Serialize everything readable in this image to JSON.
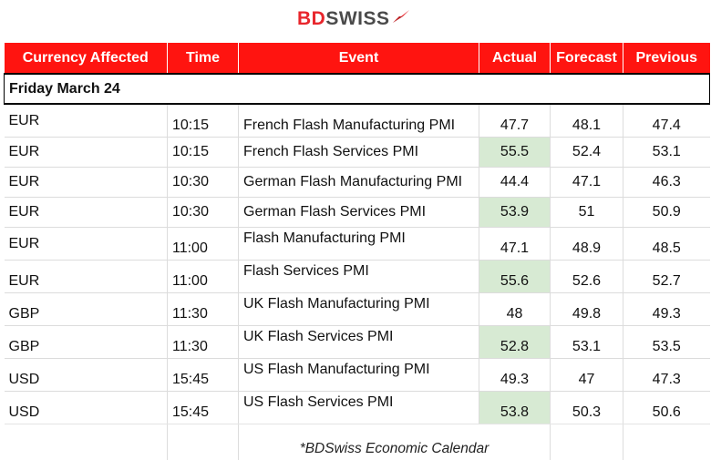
{
  "brand": {
    "part1": "BD",
    "part2": "SWISS",
    "accent": "#e8262c"
  },
  "table": {
    "headers": [
      "Currency Affected",
      "Time",
      "Event",
      "Actual",
      "Forecast",
      "Previous"
    ],
    "header_color": "#ff1410",
    "highlight_color": "#d7ead3",
    "day_label": "Friday March 24",
    "rows": [
      {
        "currency": "EUR",
        "time": "10:15",
        "event": "French Flash Manufacturing PMI",
        "actual": "47.7",
        "forecast": "48.1",
        "previous": "47.4"
      },
      {
        "currency": "EUR",
        "time": "10:15",
        "event": "French Flash Services PMI",
        "actual": "55.5",
        "forecast": "52.4",
        "previous": "53.1"
      },
      {
        "currency": "EUR",
        "time": "10:30",
        "event": "German Flash Manufacturing PMI",
        "actual": "44.4",
        "forecast": "47.1",
        "previous": "46.3"
      },
      {
        "currency": "EUR",
        "time": "10:30",
        "event": "German Flash Services PMI",
        "actual": "53.9",
        "forecast": "51",
        "previous": "50.9"
      },
      {
        "currency": "EUR",
        "time": "11:00",
        "event": "Flash Manufacturing PMI",
        "actual": "47.1",
        "forecast": "48.9",
        "previous": "48.5"
      },
      {
        "currency": "EUR",
        "time": "11:00",
        "event": "Flash Services PMI",
        "actual": "55.6",
        "forecast": "52.6",
        "previous": "52.7"
      },
      {
        "currency": "GBP",
        "time": "11:30",
        "event": "UK Flash Manufacturing PMI",
        "actual": "48",
        "forecast": "49.8",
        "previous": "49.3"
      },
      {
        "currency": "GBP",
        "time": "11:30",
        "event": "UK Flash Services PMI",
        "actual": "52.8",
        "forecast": "53.1",
        "previous": "53.5"
      },
      {
        "currency": "USD",
        "time": "15:45",
        "event": "US Flash Manufacturing PMI",
        "actual": "49.3",
        "forecast": "47",
        "previous": "47.3"
      },
      {
        "currency": "USD",
        "time": "15:45",
        "event": "US Flash Services PMI",
        "actual": "53.8",
        "forecast": "50.3",
        "previous": "50.6"
      }
    ]
  },
  "footer_note": "*BDSwiss Economic Calendar"
}
